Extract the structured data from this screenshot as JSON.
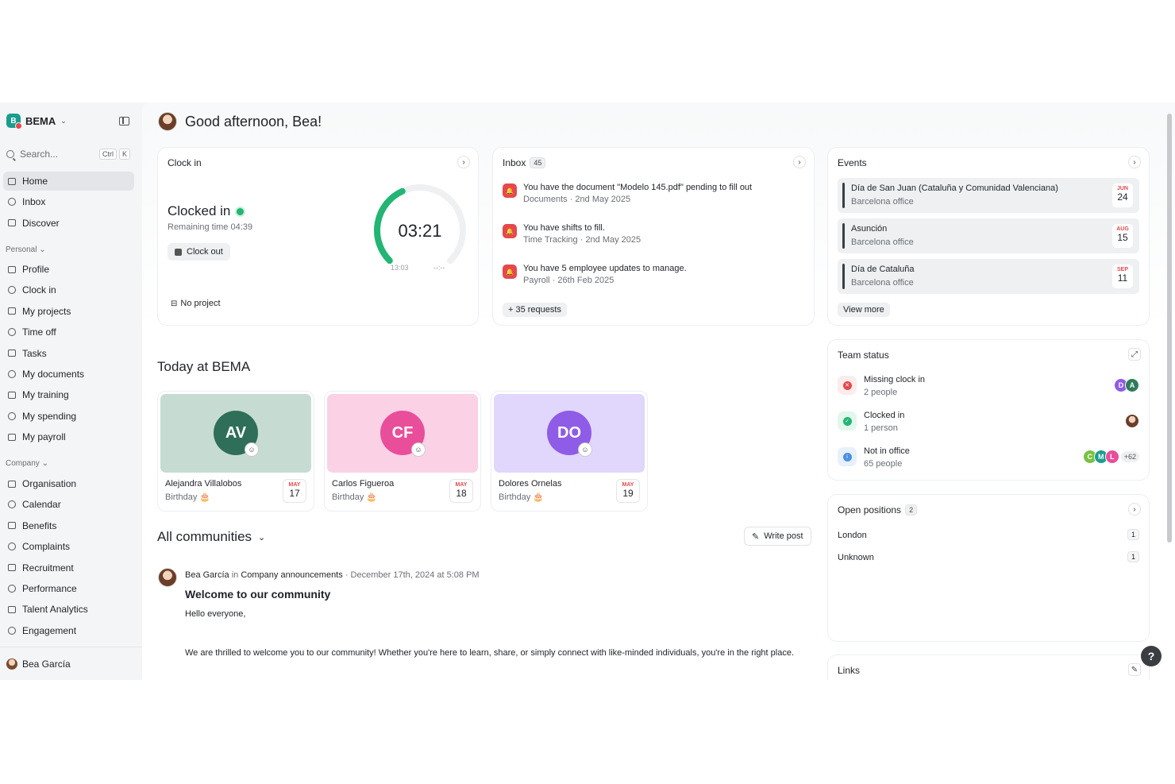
{
  "brand": {
    "name": "BEMA",
    "logo_letter": "B"
  },
  "search": {
    "placeholder": "Search...",
    "kbd1": "Ctrl",
    "kbd2": "K"
  },
  "nav_main": [
    {
      "label": "Home",
      "icon": "home-icon"
    },
    {
      "label": "Inbox",
      "icon": "inbox-icon"
    },
    {
      "label": "Discover",
      "icon": "compass-icon"
    }
  ],
  "personal_label": "Personal",
  "nav_personal": [
    {
      "label": "Profile",
      "icon": "user-icon"
    },
    {
      "label": "Clock in",
      "icon": "clock-icon"
    },
    {
      "label": "My projects",
      "icon": "briefcase-icon"
    },
    {
      "label": "Time off",
      "icon": "umbrella-icon"
    },
    {
      "label": "Tasks",
      "icon": "check-circle-icon"
    },
    {
      "label": "My documents",
      "icon": "folder-icon"
    },
    {
      "label": "My training",
      "icon": "book-icon"
    },
    {
      "label": "My spending",
      "icon": "wallet-icon"
    },
    {
      "label": "My payroll",
      "icon": "receipt-icon"
    }
  ],
  "company_label": "Company",
  "nav_company": [
    {
      "label": "Organisation",
      "icon": "people-icon"
    },
    {
      "label": "Calendar",
      "icon": "calendar-icon"
    },
    {
      "label": "Benefits",
      "icon": "globe-icon"
    },
    {
      "label": "Complaints",
      "icon": "message-icon"
    },
    {
      "label": "Recruitment",
      "icon": "search-user-icon"
    },
    {
      "label": "Performance",
      "icon": "trend-icon"
    },
    {
      "label": "Talent Analytics",
      "icon": "chart-icon"
    },
    {
      "label": "Engagement",
      "icon": "chat-icon"
    }
  ],
  "user": {
    "name": "Bea García"
  },
  "greeting": "Good afternoon, Bea!",
  "clock": {
    "title": "Clock in",
    "status": "Clocked in",
    "remaining": "Remaining time 04:39",
    "clockout_label": "Clock out",
    "project": "No project",
    "timer": "03:21",
    "start": "13:03",
    "end": "--:--",
    "progress": 0.41
  },
  "inbox": {
    "title": "Inbox",
    "count": "45",
    "items": [
      {
        "text": "You have the document \"Modelo 145.pdf\" pending to fill out",
        "sub": "Documents · 2nd May 2025"
      },
      {
        "text": "You have shifts to fill.",
        "sub": "Time Tracking · 2nd May 2025"
      },
      {
        "text": "You have 5 employee updates to manage.",
        "sub": "Payroll · 26th Feb 2025"
      }
    ],
    "more": "+ 35 requests"
  },
  "events": {
    "title": "Events",
    "items": [
      {
        "name": "Día de San Juan (Cataluña y Comunidad Valenciana)",
        "location": "Barcelona office",
        "month": "JUN",
        "day": "24"
      },
      {
        "name": "Asunción",
        "location": "Barcelona office",
        "month": "AUG",
        "day": "15"
      },
      {
        "name": "Día de Cataluña",
        "location": "Barcelona office",
        "month": "SEP",
        "day": "11"
      }
    ],
    "view_more": "View more"
  },
  "team_status": {
    "title": "Team status",
    "rows": [
      {
        "label": "Missing clock in",
        "sub": "2 people",
        "color": "#e5484d",
        "bg": "#fdecec"
      },
      {
        "label": "Clocked in",
        "sub": "1 person",
        "color": "#22b573",
        "bg": "#e3f7ec"
      },
      {
        "label": "Not in office",
        "sub": "65 people",
        "color": "#4a90e2",
        "bg": "#e8f0fb"
      }
    ],
    "missing_avatars": [
      {
        "letter": "D",
        "color": "#8e5ce6"
      },
      {
        "letter": "A",
        "color": "#2f7d5b"
      }
    ],
    "office_avatars": [
      {
        "letter": "C",
        "color": "#7ac143"
      },
      {
        "letter": "M",
        "color": "#1a9d8f"
      },
      {
        "letter": "L",
        "color": "#e94e9a"
      }
    ],
    "office_more": "+62"
  },
  "positions": {
    "title": "Open positions",
    "count": "2",
    "items": [
      {
        "name": "London",
        "count": "1"
      },
      {
        "name": "Unknown",
        "count": "1"
      }
    ]
  },
  "links": {
    "title": "Links"
  },
  "today": {
    "title": "Today at BEMA",
    "birthdays": [
      {
        "initials": "AV",
        "name": "Alejandra Villalobos",
        "sub": "Birthday 🎂",
        "month": "MAY",
        "day": "17",
        "cover": "#c6dcd2",
        "avatar": "#2f6e58"
      },
      {
        "initials": "CF",
        "name": "Carlos Figueroa",
        "sub": "Birthday 🎂",
        "month": "MAY",
        "day": "18",
        "cover": "#fbd1e6",
        "avatar": "#e94e9a"
      },
      {
        "initials": "DO",
        "name": "Dolores Ornelas",
        "sub": "Birthday 🎂",
        "month": "MAY",
        "day": "19",
        "cover": "#e1d6fb",
        "avatar": "#8e5ce6"
      }
    ]
  },
  "communities": {
    "title": "All communities",
    "write_post": "Write post",
    "post": {
      "author": "Bea García",
      "in": "in",
      "community": "Company announcements",
      "date": "· December 17th, 2024 at 5:08 PM",
      "title": "Welcome to our community",
      "line1": "Hello everyone,",
      "line2": "We are thrilled to welcome you to our community! Whether you're here to learn, share, or simply connect with like-minded individuals, you're in the right place."
    }
  },
  "help": "?"
}
